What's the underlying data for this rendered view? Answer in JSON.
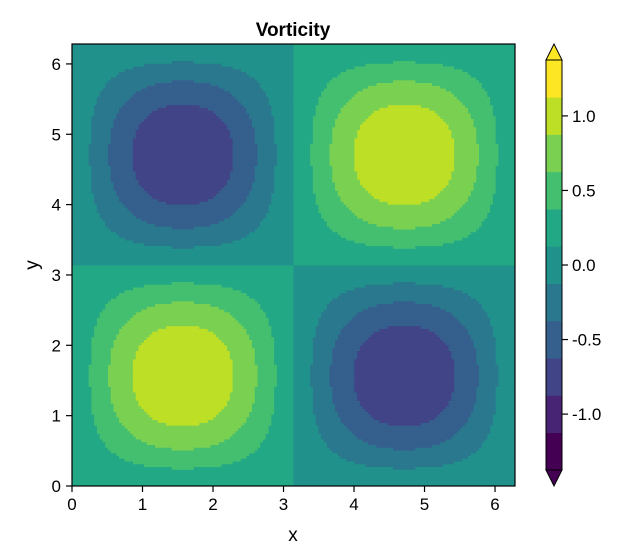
{
  "chart_data": {
    "type": "heatmap",
    "subtype": "filled-contour",
    "title": "Vorticity",
    "xlabel": "x",
    "ylabel": "y",
    "function": "sin(x) * sin(y)",
    "xlim": [
      0,
      6.2832
    ],
    "ylim": [
      0,
      6.2832
    ],
    "xticks": [
      0,
      1,
      2,
      3,
      4,
      5,
      6
    ],
    "yticks": [
      0,
      1,
      2,
      3,
      4,
      5,
      6
    ],
    "xtick_labels": [
      "0",
      "1",
      "2",
      "3",
      "4",
      "5",
      "6"
    ],
    "ytick_labels": [
      "0",
      "1",
      "2",
      "3",
      "4",
      "5",
      "6"
    ],
    "levels": [
      -1.4,
      -1.2,
      -1.0,
      -0.8,
      -0.6,
      -0.4,
      -0.2,
      0.0,
      0.2,
      0.4,
      0.6,
      0.8,
      1.0,
      1.2,
      1.4
    ],
    "level_colors": [
      "#440154",
      "#482475",
      "#414487",
      "#355f8d",
      "#2a788e",
      "#21918c",
      "#22a884",
      "#44bf70",
      "#7ad151",
      "#bddf26",
      "#fde725"
    ],
    "extend_low_color": "#440154",
    "extend_high_color": "#fde725",
    "colormap": "viridis",
    "colorbar": {
      "ticks": [
        1.0,
        0.5,
        0.0,
        -0.5,
        -1.0
      ],
      "tick_labels": [
        "1.0",
        "0.5",
        "0.0",
        "-0.5",
        "-1.0"
      ],
      "extend": "both"
    },
    "extrema": [
      {
        "x": 1.5708,
        "y": 4.7124,
        "value": -1.0
      },
      {
        "x": 4.7124,
        "y": 4.7124,
        "value": 1.0
      },
      {
        "x": 1.5708,
        "y": 1.5708,
        "value": 1.0
      },
      {
        "x": 4.7124,
        "y": 1.5708,
        "value": -1.0
      }
    ],
    "grid": false
  }
}
